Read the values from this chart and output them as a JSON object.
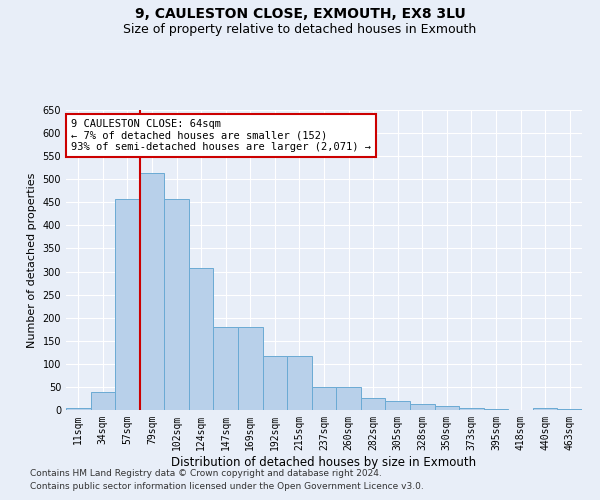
{
  "title": "9, CAULESTON CLOSE, EXMOUTH, EX8 3LU",
  "subtitle": "Size of property relative to detached houses in Exmouth",
  "xlabel": "Distribution of detached houses by size in Exmouth",
  "ylabel": "Number of detached properties",
  "categories": [
    "11sqm",
    "34sqm",
    "57sqm",
    "79sqm",
    "102sqm",
    "124sqm",
    "147sqm",
    "169sqm",
    "192sqm",
    "215sqm",
    "237sqm",
    "260sqm",
    "282sqm",
    "305sqm",
    "328sqm",
    "350sqm",
    "373sqm",
    "395sqm",
    "418sqm",
    "440sqm",
    "463sqm"
  ],
  "values": [
    5,
    38,
    458,
    513,
    458,
    307,
    180,
    180,
    118,
    118,
    50,
    50,
    27,
    20,
    14,
    8,
    5,
    2,
    0,
    5,
    2
  ],
  "bar_color": "#b8d0ea",
  "bar_edge_color": "#6aaad4",
  "background_color": "#e8eef8",
  "grid_color": "#ffffff",
  "vline_x_index": 3,
  "vline_color": "#cc0000",
  "annotation_text": "9 CAULESTON CLOSE: 64sqm\n← 7% of detached houses are smaller (152)\n93% of semi-detached houses are larger (2,071) →",
  "annotation_box_color": "#ffffff",
  "annotation_box_edge": "#cc0000",
  "ylim": [
    0,
    650
  ],
  "yticks": [
    0,
    50,
    100,
    150,
    200,
    250,
    300,
    350,
    400,
    450,
    500,
    550,
    600,
    650
  ],
  "footer_line1": "Contains HM Land Registry data © Crown copyright and database right 2024.",
  "footer_line2": "Contains public sector information licensed under the Open Government Licence v3.0.",
  "title_fontsize": 10,
  "subtitle_fontsize": 9,
  "xlabel_fontsize": 8.5,
  "ylabel_fontsize": 8,
  "tick_fontsize": 7,
  "footer_fontsize": 6.5,
  "ann_fontsize": 7.5
}
